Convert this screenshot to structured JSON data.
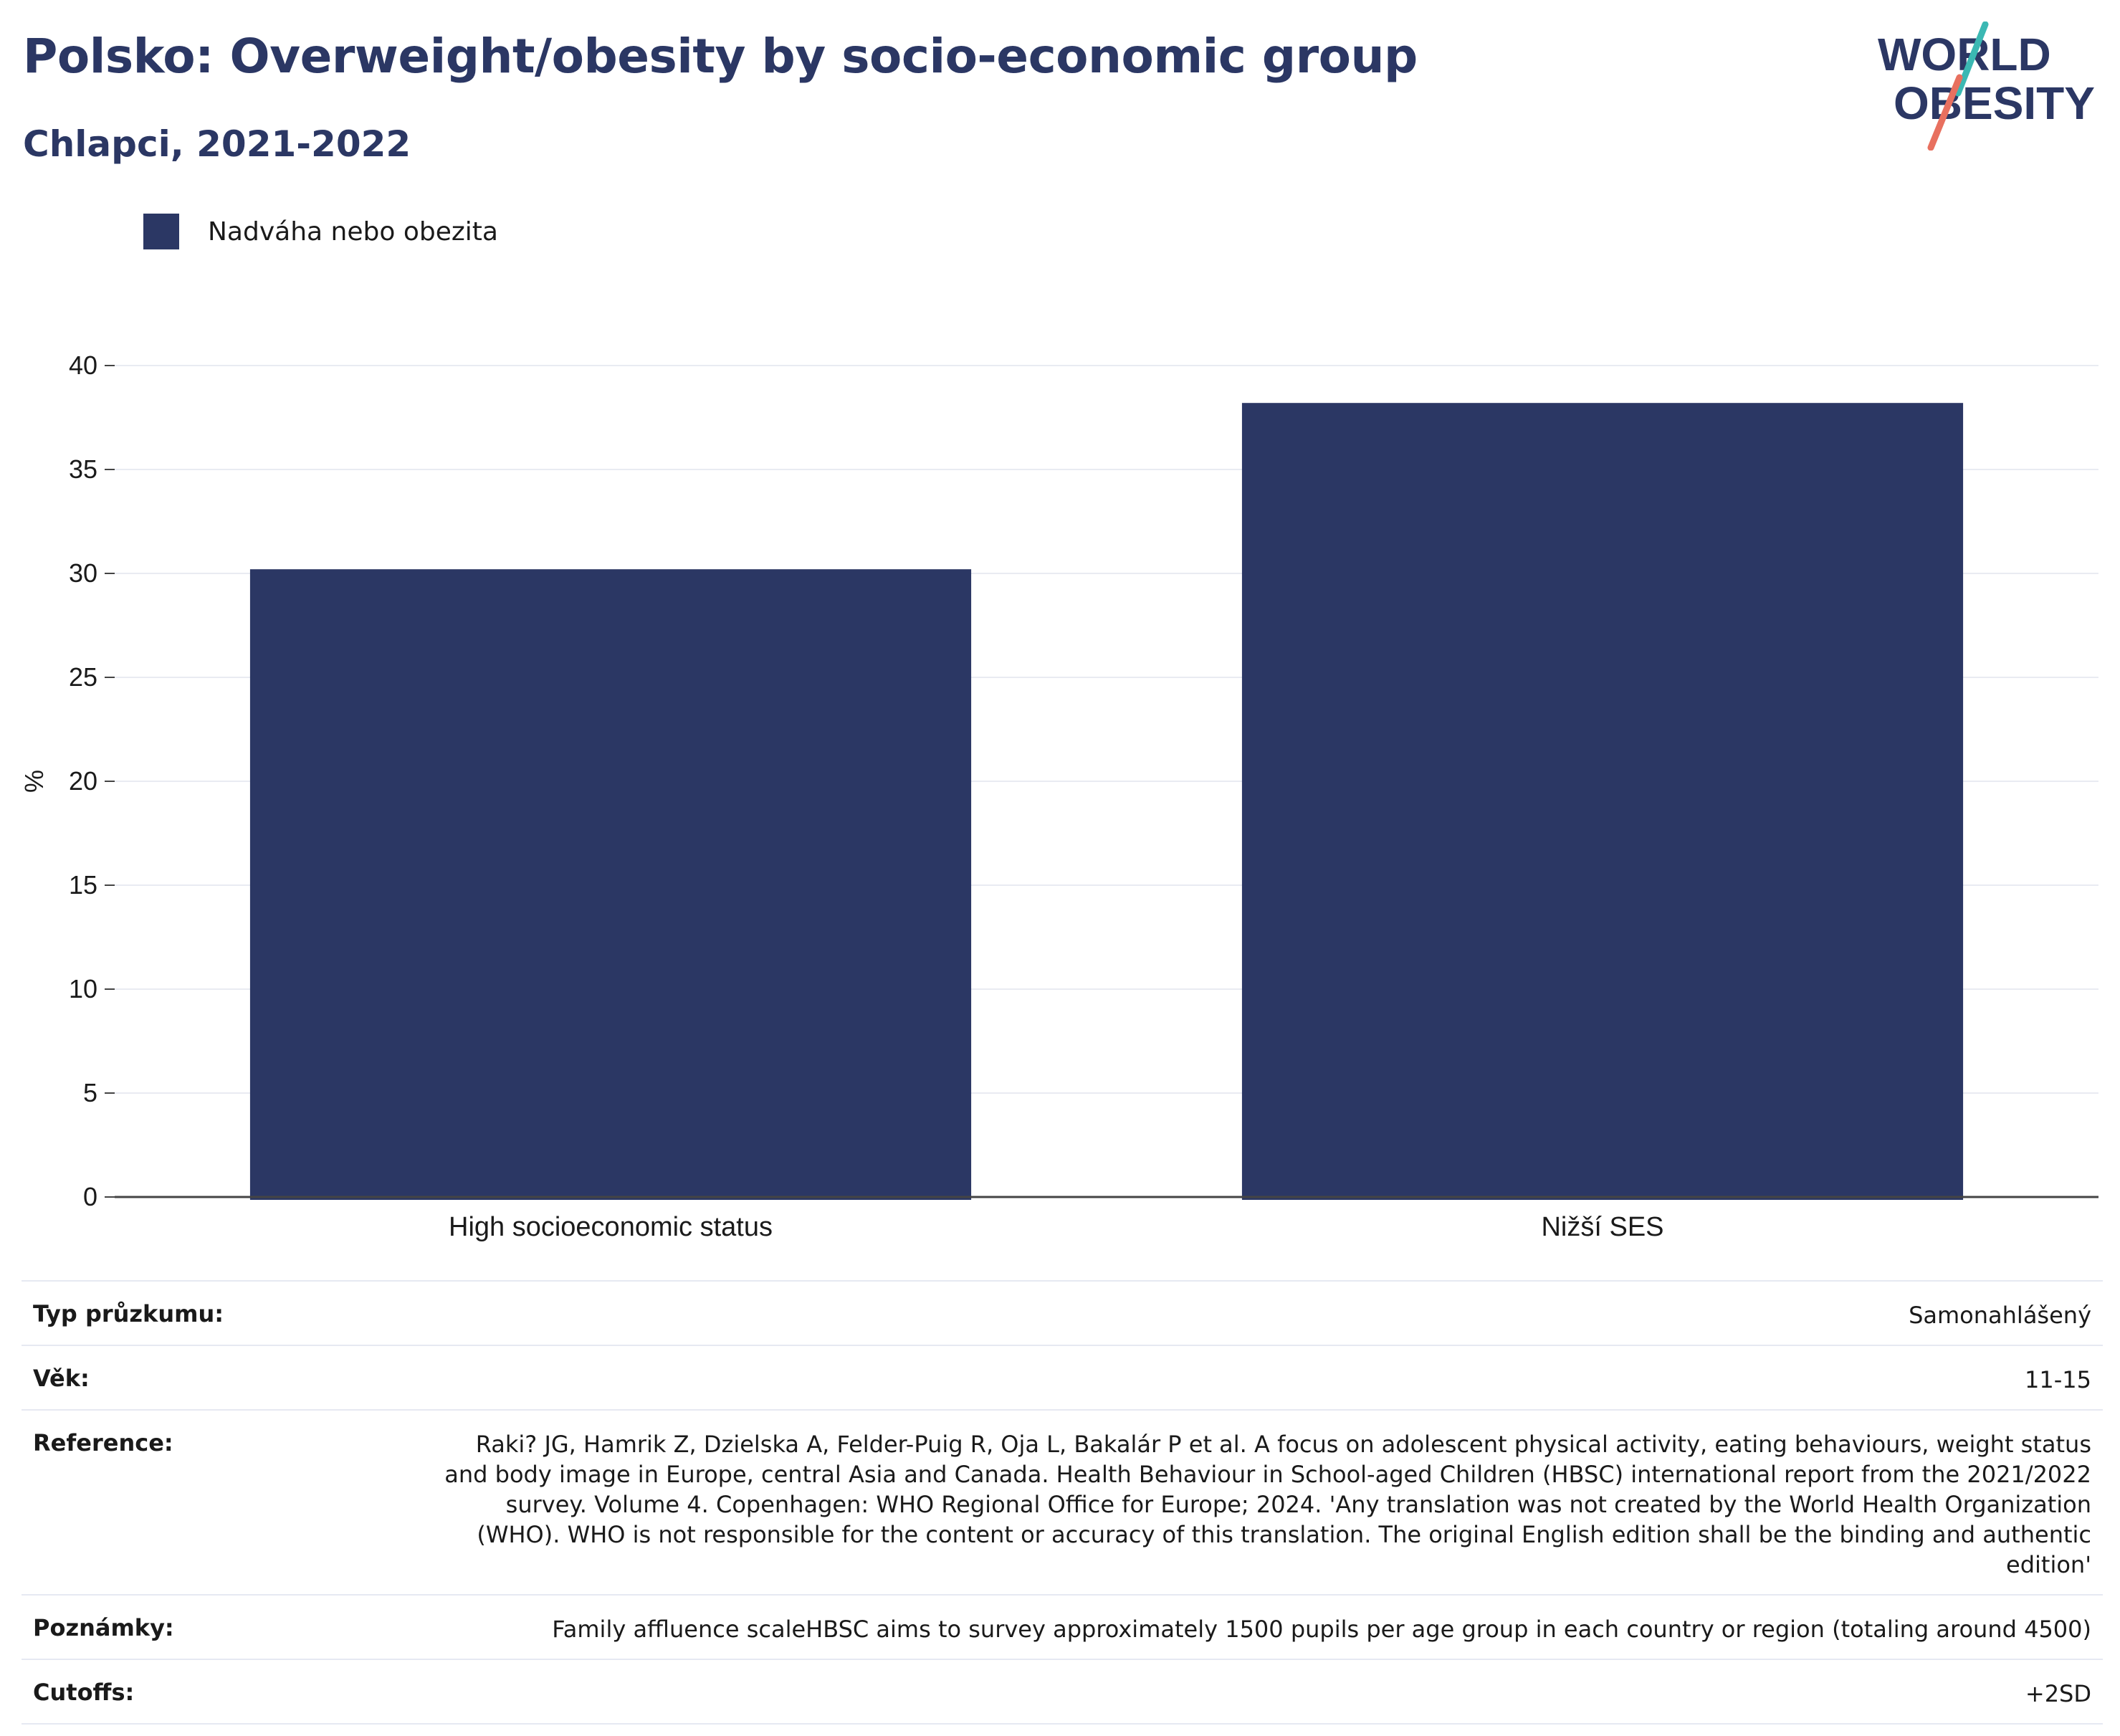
{
  "header": {
    "title": "Polsko: Overweight/obesity by socio-economic group",
    "subtitle": "Chlapci, 2021-2022"
  },
  "logo": {
    "line1": "WORLD",
    "line2": "OBESITY",
    "accent_teal": "#3bb8b3",
    "accent_coral": "#e8705f"
  },
  "legend": {
    "label": "Nadváha nebo obezita",
    "color": "#2b3764"
  },
  "chart_data": {
    "type": "bar",
    "categories": [
      "High socioeconomic status",
      "Nižší SES"
    ],
    "series": [
      {
        "name": "Nadváha nebo obezita",
        "values": [
          30.2,
          38.2
        ],
        "color": "#2b3764"
      }
    ],
    "ylabel": "%",
    "ylim": [
      0,
      40
    ],
    "yticks": [
      0,
      5,
      10,
      15,
      20,
      25,
      30,
      35,
      40
    ],
    "grid": true
  },
  "info": {
    "survey_type": {
      "label": "Typ průzkumu:",
      "value": "Samonahlášený"
    },
    "age": {
      "label": "Věk:",
      "value": "11-15"
    },
    "reference": {
      "label": "Reference:",
      "value": "Raki? JG, Hamrik Z, Dzielska A, Felder-Puig R, Oja L, Bakalár P et al. A focus on adolescent physical activity, eating behaviours, weight status and body image in Europe, central Asia and Canada. Health Behaviour in School-aged Children (HBSC) international report from the 2021/2022 survey. Volume 4. Copenhagen: WHO Regional Office for Europe; 2024. 'Any translation was not created by the World Health Organization (WHO). WHO is not responsible for the content or accuracy of this translation. The original English edition shall be the binding and authentic edition'"
    },
    "notes": {
      "label": "Poznámky:",
      "value": "Family affluence scaleHBSC aims to survey approximately 1500 pupils per age group in each country or region (totaling around 4500)"
    },
    "cutoffs": {
      "label": "Cutoffs:",
      "value": "+2SD"
    }
  }
}
